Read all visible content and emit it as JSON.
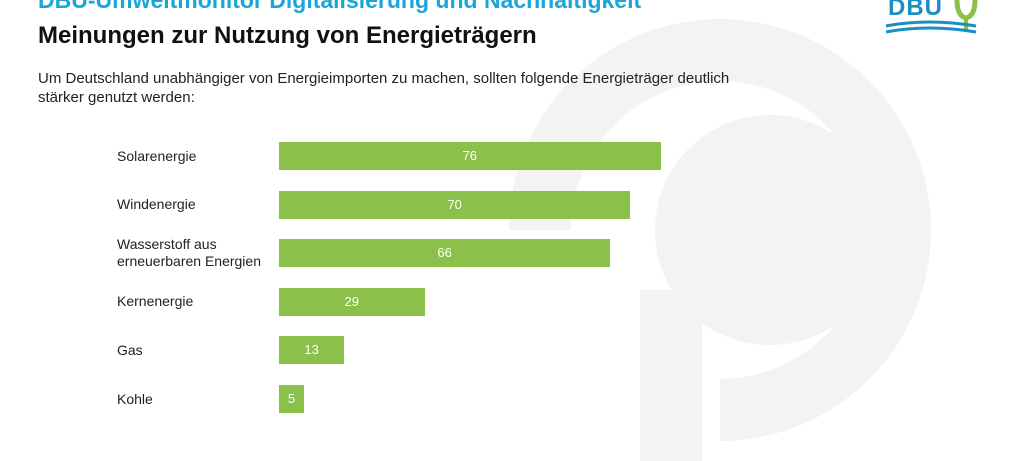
{
  "header": {
    "title": "DBU-Umweltmonitor Digitalisierung und Nachhaltigkeit",
    "subtitle": "Meinungen zur Nutzung von Energieträgern",
    "description": "Um Deutschland unabhängiger von Energieimporten zu machen, sollten folgende Energieträger deutlich stärker genutzt werden:"
  },
  "logo": {
    "text": "DBU",
    "icon": "leaf-icon"
  },
  "colors": {
    "bar": "#8bc14a",
    "title": "#1aa6d8",
    "logo": "#1a8fc4",
    "watermark": "#f3f3f3"
  },
  "chart_data": {
    "type": "bar",
    "orientation": "horizontal",
    "categories": [
      "Solarenergie",
      "Windenergie",
      "Wasserstoff aus erneuerbaren Energien",
      "Kernenergie",
      "Gas",
      "Kohle"
    ],
    "category_lines": [
      [
        "Solarenergie"
      ],
      [
        "Windenergie"
      ],
      [
        "Wasserstoff aus",
        "erneuerbaren Energien"
      ],
      [
        "Kernenergie"
      ],
      [
        "Gas"
      ],
      [
        "Kohle"
      ]
    ],
    "values": [
      76,
      70,
      66,
      29,
      13,
      5
    ],
    "data_labels": [
      "76",
      "70",
      "66",
      "29",
      "13",
      "5"
    ],
    "xlim": [
      0,
      100
    ],
    "grid": false,
    "legend": "none"
  }
}
